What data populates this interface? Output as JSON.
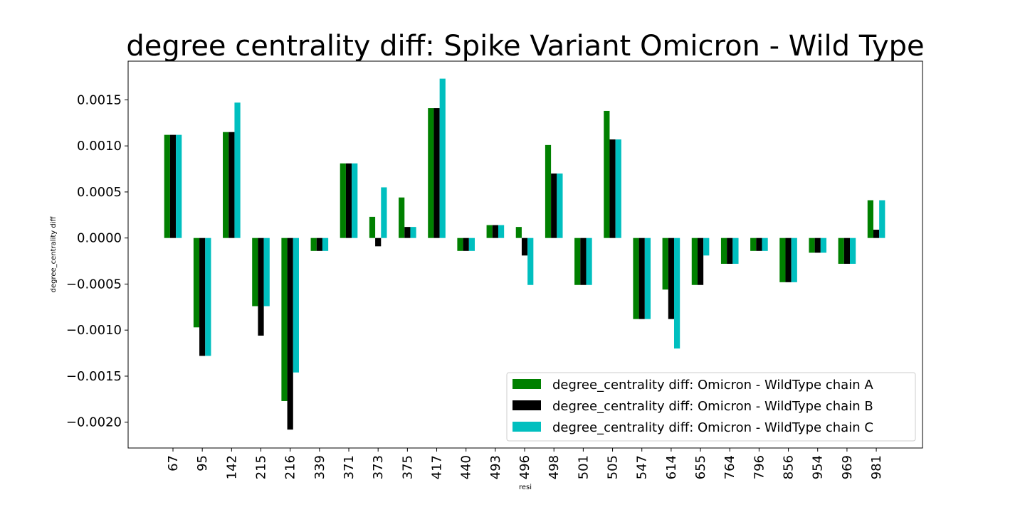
{
  "chart_data": {
    "type": "bar",
    "title": "degree centrality diff: Spike Variant Omicron - Wild Type",
    "xlabel": "resi",
    "ylabel": "degree_centrality diff",
    "categories": [
      "67",
      "95",
      "142",
      "215",
      "216",
      "339",
      "371",
      "373",
      "375",
      "417",
      "440",
      "493",
      "496",
      "498",
      "501",
      "505",
      "547",
      "614",
      "655",
      "764",
      "796",
      "856",
      "954",
      "969",
      "981"
    ],
    "yticks": [
      -0.002,
      -0.0015,
      -0.001,
      -0.0005,
      0.0,
      0.0005,
      0.001,
      0.0015
    ],
    "ytick_labels": [
      "−0.0020",
      "−0.0015",
      "−0.0010",
      "−0.0005",
      "0.0000",
      "0.0005",
      "0.0010",
      "0.0015"
    ],
    "ylim": [
      -0.00228,
      0.00192
    ],
    "legend_position": "lower-right",
    "grid": false,
    "series": [
      {
        "name": "degree_centrality diff: Omicron - WildType chain A",
        "color": "#008000",
        "values": [
          0.00112,
          -0.00097,
          0.00115,
          -0.00074,
          -0.00177,
          -0.00014,
          0.00081,
          0.00023,
          0.00044,
          0.00141,
          -0.00014,
          0.00014,
          0.00012,
          0.00101,
          -0.00051,
          0.00138,
          -0.00088,
          -0.00056,
          -0.00051,
          -0.00028,
          -0.00014,
          -0.00048,
          -0.00016,
          -0.00028,
          0.00041
        ]
      },
      {
        "name": "degree_centrality diff: Omicron - WildType chain B",
        "color": "#000000",
        "values": [
          0.00112,
          -0.00128,
          0.00115,
          -0.00106,
          -0.00208,
          -0.00014,
          0.00081,
          -9e-05,
          0.00012,
          0.00141,
          -0.00014,
          0.00014,
          -0.00019,
          0.0007,
          -0.00051,
          0.00107,
          -0.00088,
          -0.00088,
          -0.00051,
          -0.00028,
          -0.00014,
          -0.00048,
          -0.00016,
          -0.00028,
          9e-05
        ]
      },
      {
        "name": "degree_centrality diff: Omicron - WildType chain C",
        "color": "#00BFBF",
        "values": [
          0.00112,
          -0.00128,
          0.00147,
          -0.00074,
          -0.00146,
          -0.00014,
          0.00081,
          0.00055,
          0.00012,
          0.00173,
          -0.00014,
          0.00014,
          -0.00051,
          0.0007,
          -0.00051,
          0.00107,
          -0.00088,
          -0.0012,
          -0.00019,
          -0.00028,
          -0.00014,
          -0.00048,
          -0.00016,
          -0.00028,
          0.00041
        ]
      }
    ]
  }
}
